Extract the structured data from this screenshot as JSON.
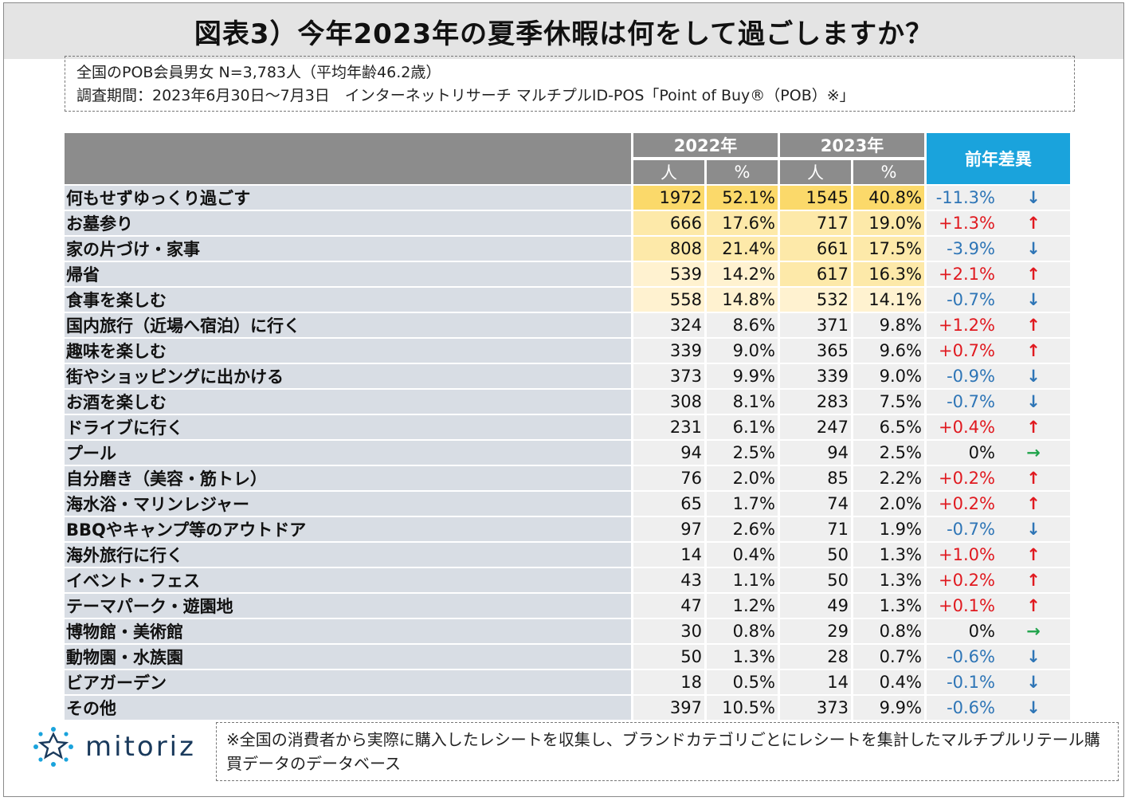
{
  "title": "図表3）今年2023年の夏季休暇は何をして過ごしますか？",
  "info": {
    "line1": "全国のPOB会員男女 N=3,783人（平均年齢46.2歳）",
    "line2": "調査期間：2023年6月30日～7月3日　インターネットリサーチ マルチプルID-POS「Point of Buy®（POB）※」"
  },
  "table": {
    "header_2022": "2022年",
    "header_2023": "2023年",
    "header_diff": "前年差異",
    "sub_people": "人",
    "sub_percent": "%",
    "rows": [
      {
        "label": "何もせずゆっくり過ごす",
        "p22": "1972",
        "r22": "52.1%",
        "p23": "1545",
        "r23": "40.8%",
        "diff": "-11.3%",
        "arrow": "↓"
      },
      {
        "label": "お墓参り",
        "p22": "666",
        "r22": "17.6%",
        "p23": "717",
        "r23": "19.0%",
        "diff": "+1.3%",
        "arrow": "↑"
      },
      {
        "label": "家の片づけ・家事",
        "p22": "808",
        "r22": "21.4%",
        "p23": "661",
        "r23": "17.5%",
        "diff": "-3.9%",
        "arrow": "↓"
      },
      {
        "label": "帰省",
        "p22": "539",
        "r22": "14.2%",
        "p23": "617",
        "r23": "16.3%",
        "diff": "+2.1%",
        "arrow": "↑"
      },
      {
        "label": "食事を楽しむ",
        "p22": "558",
        "r22": "14.8%",
        "p23": "532",
        "r23": "14.1%",
        "diff": "-0.7%",
        "arrow": "↓"
      },
      {
        "label": "国内旅行（近場へ宿泊）に行く",
        "p22": "324",
        "r22": "8.6%",
        "p23": "371",
        "r23": "9.8%",
        "diff": "+1.2%",
        "arrow": "↑"
      },
      {
        "label": "趣味を楽しむ",
        "p22": "339",
        "r22": "9.0%",
        "p23": "365",
        "r23": "9.6%",
        "diff": "+0.7%",
        "arrow": "↑"
      },
      {
        "label": "街やショッピングに出かける",
        "p22": "373",
        "r22": "9.9%",
        "p23": "339",
        "r23": "9.0%",
        "diff": "-0.9%",
        "arrow": "↓"
      },
      {
        "label": "お酒を楽しむ",
        "p22": "308",
        "r22": "8.1%",
        "p23": "283",
        "r23": "7.5%",
        "diff": "-0.7%",
        "arrow": "↓"
      },
      {
        "label": "ドライブに行く",
        "p22": "231",
        "r22": "6.1%",
        "p23": "247",
        "r23": "6.5%",
        "diff": "+0.4%",
        "arrow": "↑"
      },
      {
        "label": "プール",
        "p22": "94",
        "r22": "2.5%",
        "p23": "94",
        "r23": "2.5%",
        "diff": "0%",
        "arrow": "→"
      },
      {
        "label": "自分磨き（美容・筋トレ）",
        "p22": "76",
        "r22": "2.0%",
        "p23": "85",
        "r23": "2.2%",
        "diff": "+0.2%",
        "arrow": "↑"
      },
      {
        "label": "海水浴・マリンレジャー",
        "p22": "65",
        "r22": "1.7%",
        "p23": "74",
        "r23": "2.0%",
        "diff": "+0.2%",
        "arrow": "↑"
      },
      {
        "label": "BBQやキャンプ等のアウトドア",
        "p22": "97",
        "r22": "2.6%",
        "p23": "71",
        "r23": "1.9%",
        "diff": "-0.7%",
        "arrow": "↓"
      },
      {
        "label": "海外旅行に行く",
        "p22": "14",
        "r22": "0.4%",
        "p23": "50",
        "r23": "1.3%",
        "diff": "+1.0%",
        "arrow": "↑"
      },
      {
        "label": "イベント・フェス",
        "p22": "43",
        "r22": "1.1%",
        "p23": "50",
        "r23": "1.3%",
        "diff": "+0.2%",
        "arrow": "↑"
      },
      {
        "label": "テーマパーク・遊園地",
        "p22": "47",
        "r22": "1.2%",
        "p23": "49",
        "r23": "1.3%",
        "diff": "+0.1%",
        "arrow": "↑"
      },
      {
        "label": "博物館・美術館",
        "p22": "30",
        "r22": "0.8%",
        "p23": "29",
        "r23": "0.8%",
        "diff": "0%",
        "arrow": "→"
      },
      {
        "label": "動物園・水族園",
        "p22": "50",
        "r22": "1.3%",
        "p23": "28",
        "r23": "0.7%",
        "diff": "-0.6%",
        "arrow": "↓"
      },
      {
        "label": "ビアガーデン",
        "p22": "18",
        "r22": "0.5%",
        "p23": "14",
        "r23": "0.4%",
        "diff": "-0.1%",
        "arrow": "↓"
      },
      {
        "label": "その他",
        "p22": "397",
        "r22": "10.5%",
        "p23": "373",
        "r23": "9.9%",
        "diff": "-0.6%",
        "arrow": "↓"
      }
    ]
  },
  "chart_data": {
    "type": "table",
    "title": "図表3）今年2023年の夏季休暇は何をして過ごしますか？",
    "columns": [
      "2022年 人",
      "2022年 %",
      "2023年 人",
      "2023年 %",
      "前年差異"
    ],
    "categories": [
      "何もせずゆっくり過ごす",
      "お墓参り",
      "家の片づけ・家事",
      "帰省",
      "食事を楽しむ",
      "国内旅行（近場へ宿泊）に行く",
      "趣味を楽しむ",
      "街やショッピングに出かける",
      "お酒を楽しむ",
      "ドライブに行く",
      "プール",
      "自分磨き（美容・筋トレ）",
      "海水浴・マリンレジャー",
      "BBQやキャンプ等のアウトドア",
      "海外旅行に行く",
      "イベント・フェス",
      "テーマパーク・遊園地",
      "博物館・美術館",
      "動物園・水族園",
      "ビアガーデン",
      "その他"
    ],
    "series": [
      {
        "name": "2022年 人",
        "values": [
          1972,
          666,
          808,
          539,
          558,
          324,
          339,
          373,
          308,
          231,
          94,
          76,
          65,
          97,
          14,
          43,
          47,
          30,
          50,
          18,
          397
        ]
      },
      {
        "name": "2022年 %",
        "values": [
          52.1,
          17.6,
          21.4,
          14.2,
          14.8,
          8.6,
          9.0,
          9.9,
          8.1,
          6.1,
          2.5,
          2.0,
          1.7,
          2.6,
          0.4,
          1.1,
          1.2,
          0.8,
          1.3,
          0.5,
          10.5
        ]
      },
      {
        "name": "2023年 人",
        "values": [
          1545,
          717,
          661,
          617,
          532,
          371,
          365,
          339,
          283,
          247,
          94,
          85,
          74,
          71,
          50,
          50,
          49,
          29,
          28,
          14,
          373
        ]
      },
      {
        "name": "2023年 %",
        "values": [
          40.8,
          19.0,
          17.5,
          16.3,
          14.1,
          9.8,
          9.6,
          9.0,
          7.5,
          6.5,
          2.5,
          2.2,
          2.0,
          1.9,
          1.3,
          1.3,
          1.3,
          0.8,
          0.7,
          0.4,
          9.9
        ]
      },
      {
        "name": "前年差異",
        "values": [
          -11.3,
          1.3,
          -3.9,
          2.1,
          -0.7,
          1.2,
          0.7,
          -0.9,
          -0.7,
          0.4,
          0,
          0.2,
          0.2,
          -0.7,
          1.0,
          0.2,
          0.1,
          0,
          -0.6,
          -0.1,
          -0.6
        ]
      }
    ]
  },
  "colors": {
    "highlight_top": "#fbd96a",
    "highlight_mid": "#fde9a9",
    "highlight_low": "#fff2d0",
    "negative": "#2e75b6",
    "positive": "#e0191f",
    "flat": "#1fa34a",
    "header_gray": "#8c8c8c",
    "header_blue": "#1aa3dc"
  },
  "logo": {
    "text": "mitoriz",
    "icon": "sparkle-logo-icon"
  },
  "footnote": "※全国の消費者から実際に購入したレシートを収集し、ブランドカテゴリごとにレシートを集計したマルチプルリテール購買データのデータベース"
}
